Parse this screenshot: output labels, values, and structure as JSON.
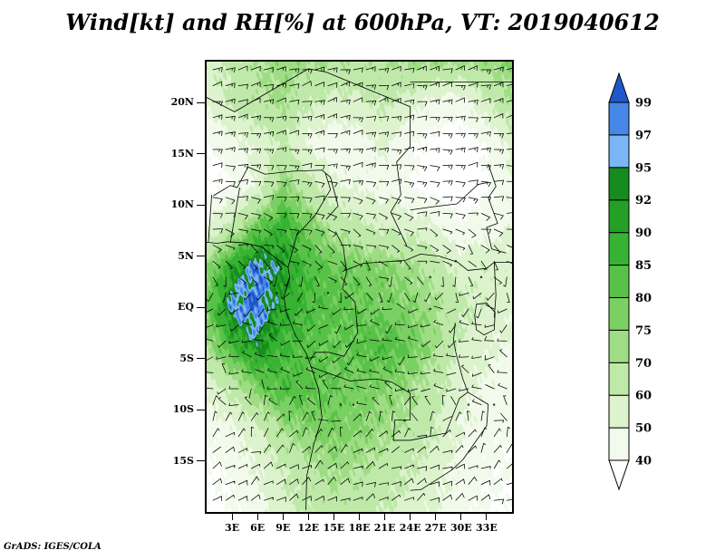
{
  "credit": "GrADS: IGES/COLA",
  "chart_data": {
    "type": "heatmap",
    "title": "Wind[kt] and RH[%] at 600hPa, VT: 2019040612",
    "variable": "Relative humidity (%) shaded with wind barbs (kt)",
    "level": "600hPa",
    "valid_time": "2019040612",
    "extent": {
      "lon_min": 0,
      "lon_max": 36,
      "lat_min": -20,
      "lat_max": 24
    },
    "x_ticks": [
      "3E",
      "6E",
      "9E",
      "12E",
      "15E",
      "18E",
      "21E",
      "24E",
      "27E",
      "30E",
      "33E"
    ],
    "x_tick_lons": [
      3,
      6,
      9,
      12,
      15,
      18,
      21,
      24,
      27,
      30,
      33
    ],
    "y_ticks": [
      "20N",
      "15N",
      "10N",
      "5N",
      "EQ",
      "5S",
      "10S",
      "15S"
    ],
    "y_tick_lats": [
      20,
      15,
      10,
      5,
      0,
      -5,
      -10,
      -15
    ],
    "grid": false,
    "legend_position": "right-colorbar",
    "colorbar": {
      "levels": [
        40,
        50,
        60,
        70,
        75,
        80,
        85,
        90,
        92,
        95,
        97,
        99
      ],
      "labels_top_to_bottom": [
        "99",
        "97",
        "95",
        "92",
        "90",
        "85",
        "80",
        "75",
        "70",
        "60",
        "50",
        "40"
      ],
      "segment_colors": [
        "#f2faec",
        "#dcf3cd",
        "#bfe9a9",
        "#9fdd85",
        "#7bd063",
        "#57c247",
        "#37b232",
        "#23a025",
        "#168c1e",
        "#7ab6f5",
        "#4687e8"
      ],
      "under_color": "#ffffff",
      "over_color": "#2057c8"
    },
    "rh_grid": {
      "lons": [
        0,
        3,
        6,
        9,
        12,
        15,
        18,
        21,
        24,
        27,
        30,
        33,
        36
      ],
      "lats": [
        24,
        20,
        16,
        12,
        8,
        4,
        0,
        -4,
        -8,
        -12,
        -16,
        -20
      ],
      "values": [
        [
          58,
          62,
          70,
          74,
          72,
          70,
          68,
          70,
          72,
          74,
          72,
          74,
          76
        ],
        [
          52,
          62,
          68,
          72,
          62,
          56,
          58,
          62,
          56,
          46,
          44,
          58,
          70
        ],
        [
          40,
          46,
          54,
          62,
          48,
          42,
          46,
          52,
          42,
          36,
          34,
          42,
          54
        ],
        [
          34,
          40,
          52,
          76,
          64,
          52,
          48,
          46,
          40,
          34,
          32,
          38,
          48
        ],
        [
          50,
          64,
          80,
          88,
          78,
          68,
          62,
          58,
          56,
          50,
          42,
          44,
          50
        ],
        [
          74,
          90,
          98,
          92,
          84,
          80,
          78,
          76,
          72,
          66,
          56,
          58,
          56
        ],
        [
          80,
          97,
          99,
          90,
          85,
          82,
          80,
          78,
          76,
          72,
          62,
          58,
          52
        ],
        [
          70,
          86,
          93,
          86,
          82,
          80,
          82,
          84,
          80,
          72,
          58,
          52,
          48
        ],
        [
          52,
          64,
          78,
          84,
          82,
          80,
          78,
          76,
          72,
          64,
          52,
          48,
          44
        ],
        [
          42,
          48,
          58,
          72,
          76,
          78,
          76,
          72,
          68,
          60,
          50,
          44,
          42
        ],
        [
          38,
          42,
          50,
          60,
          68,
          72,
          70,
          66,
          60,
          54,
          46,
          42,
          40
        ],
        [
          36,
          40,
          46,
          56,
          62,
          66,
          64,
          60,
          56,
          50,
          44,
          40,
          38
        ]
      ]
    },
    "wind_grid": {
      "lats": [
        24,
        20,
        16,
        12,
        8,
        4,
        0,
        -4,
        -8,
        -12,
        -16,
        -20
      ],
      "u_by_lat": [
        -13,
        -13,
        -14,
        -11,
        -7,
        -3,
        3,
        5,
        3,
        -2,
        -6,
        -8
      ],
      "v_by_lat": [
        -3,
        -3,
        -2,
        0,
        2,
        3,
        2,
        1,
        -1,
        -3,
        -4,
        -4
      ],
      "units": "kt"
    },
    "map_outlines": [
      [
        [
          0,
          6.35
        ],
        [
          1.2,
          6.25
        ],
        [
          2.5,
          6.4
        ],
        [
          4.3,
          6.3
        ],
        [
          6.5,
          5.9
        ],
        [
          8.3,
          4.7
        ],
        [
          9.6,
          3.9
        ],
        [
          9.8,
          2.9
        ],
        [
          9.1,
          1.0
        ],
        [
          9.4,
          -0.5
        ],
        [
          10.5,
          -2.8
        ],
        [
          11.8,
          -4.6
        ],
        [
          13.2,
          -8.0
        ],
        [
          13.6,
          -10.8
        ],
        [
          12.6,
          -13.5
        ],
        [
          11.8,
          -16.5
        ],
        [
          11.7,
          -19.8
        ]
      ],
      [
        [
          0.2,
          6.3
        ],
        [
          0.6,
          11.0
        ]
      ],
      [
        [
          2.8,
          6.3
        ],
        [
          3.9,
          11.7
        ]
      ],
      [
        [
          0.8,
          10.9
        ],
        [
          2.8,
          11.9
        ],
        [
          3.6,
          11.7
        ],
        [
          4.9,
          13.7
        ],
        [
          6.9,
          13.0
        ],
        [
          10.2,
          13.3
        ],
        [
          13.6,
          13.4
        ],
        [
          14.6,
          12.7
        ],
        [
          15.5,
          9.9
        ],
        [
          14.1,
          8.6
        ]
      ],
      [
        [
          9.6,
          3.9
        ],
        [
          10.6,
          7.0
        ],
        [
          12.8,
          9.0
        ],
        [
          14.6,
          11.5
        ],
        [
          14.0,
          13.1
        ]
      ],
      [
        [
          0,
          20.5
        ],
        [
          3.3,
          19.1
        ],
        [
          12,
          23.3
        ],
        [
          14,
          23.0
        ]
      ],
      [
        [
          14,
          23.0
        ],
        [
          24,
          19.6
        ],
        [
          24,
          15.7
        ],
        [
          22.4,
          14.2
        ],
        [
          22.9,
          11.0
        ],
        [
          21.7,
          9.3
        ],
        [
          23.6,
          6.0
        ]
      ],
      [
        [
          24,
          22.0
        ],
        [
          36,
          22.0
        ]
      ],
      [
        [
          16,
          3.5
        ],
        [
          18.5,
          4.3
        ],
        [
          20.5,
          4.4
        ],
        [
          23.5,
          4.6
        ],
        [
          25.2,
          5.2
        ],
        [
          27.4,
          5.0
        ],
        [
          29.6,
          4.4
        ],
        [
          30.8,
          3.6
        ],
        [
          33.0,
          3.8
        ],
        [
          33.9,
          4.4
        ],
        [
          36,
          4.4
        ]
      ],
      [
        [
          15.2,
          7.4
        ],
        [
          16.1,
          5.9
        ],
        [
          16.5,
          3.5
        ],
        [
          16.0,
          1.8
        ],
        [
          17.5,
          0.5
        ],
        [
          17.8,
          -2.5
        ],
        [
          16.2,
          -4.8
        ],
        [
          14.4,
          -4.4
        ],
        [
          12.8,
          -4.4
        ],
        [
          12.2,
          -5.2
        ]
      ],
      [
        [
          12.2,
          -5.8
        ],
        [
          16.9,
          -7.2
        ],
        [
          20.0,
          -7.0
        ],
        [
          21.8,
          -7.3
        ],
        [
          24.0,
          -8.4
        ],
        [
          24.0,
          -11.0
        ],
        [
          22.2,
          -11.0
        ],
        [
          22.0,
          -13.0
        ],
        [
          24.0,
          -13.0
        ]
      ],
      [
        [
          24,
          -13.0
        ],
        [
          28.2,
          -12.3
        ],
        [
          29.8,
          -8.9
        ],
        [
          30.8,
          -8.3
        ],
        [
          33.2,
          -9.5
        ],
        [
          33.0,
          -11.6
        ],
        [
          30.2,
          -14.9
        ],
        [
          28.9,
          -15.9
        ],
        [
          25.3,
          -17.8
        ],
        [
          24.0,
          -17.9
        ]
      ],
      [
        [
          29.3,
          -1.5
        ],
        [
          29.1,
          -3.2
        ],
        [
          29.4,
          -4.5
        ],
        [
          30.2,
          -7.0
        ],
        [
          30.8,
          -8.3
        ]
      ],
      [
        [
          31.8,
          0.3
        ],
        [
          33.0,
          0.4
        ],
        [
          34.0,
          -0.5
        ],
        [
          33.9,
          -2.2
        ],
        [
          32.7,
          -2.7
        ],
        [
          31.8,
          -2.2
        ],
        [
          31.6,
          -0.8
        ],
        [
          31.8,
          0.3
        ]
      ],
      [
        [
          33.9,
          4.4
        ],
        [
          34.1,
          1.2
        ],
        [
          33.9,
          -1.0
        ]
      ],
      [
        [
          33.2,
          14.0
        ],
        [
          34.1,
          11.8
        ],
        [
          33.2,
          10.7
        ],
        [
          34.3,
          8.2
        ],
        [
          33.0,
          7.8
        ],
        [
          33.6,
          5.7
        ],
        [
          35.3,
          5.3
        ]
      ],
      [
        [
          24.0,
          9.5
        ],
        [
          26.5,
          9.8
        ],
        [
          29.5,
          10.1
        ],
        [
          32.0,
          12.0
        ],
        [
          33.2,
          12.2
        ]
      ]
    ]
  }
}
